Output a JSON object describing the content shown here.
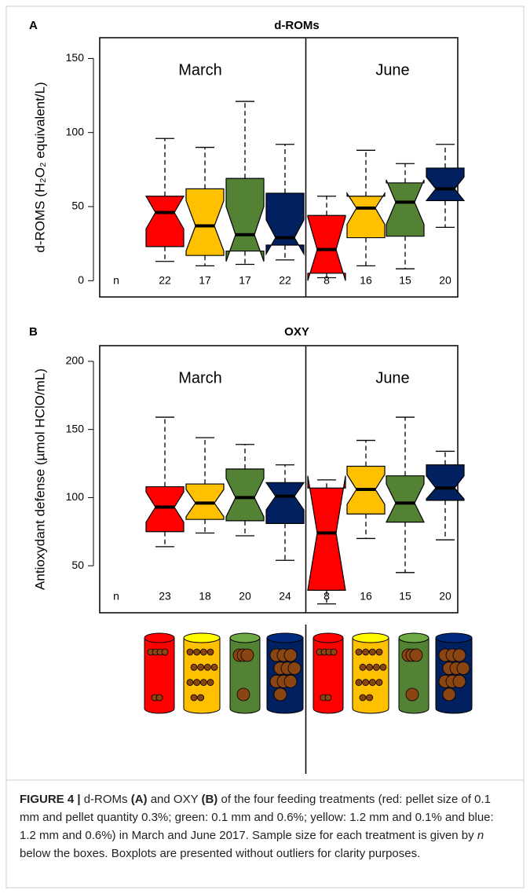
{
  "chart_data": [
    {
      "type": "boxplot",
      "label": "A",
      "title": "d-ROMs",
      "ylabel": "d-ROMS (H₂O₂ equivalent/L)",
      "groups": [
        "March",
        "June"
      ],
      "n_label": "n",
      "n": [
        22,
        17,
        17,
        22,
        8,
        16,
        15,
        20
      ],
      "colors": [
        "#ff0000",
        "#ffc000",
        "#548235",
        "#002060",
        "#ff0000",
        "#ffc000",
        "#548235",
        "#002060"
      ],
      "boxes": [
        {
          "whisker_low": 13,
          "q1": 23,
          "median": 46,
          "q3": 57,
          "whisker_high": 96,
          "notch_low": 35,
          "notch_high": 57
        },
        {
          "whisker_low": 10,
          "q1": 17,
          "median": 37,
          "q3": 62,
          "whisker_high": 90,
          "notch_low": 20,
          "notch_high": 54
        },
        {
          "whisker_low": 11,
          "q1": 20,
          "median": 31,
          "q3": 69,
          "whisker_high": 121,
          "notch_low": 13,
          "notch_high": 50
        },
        {
          "whisker_low": 14,
          "q1": 24,
          "median": 29,
          "q3": 59,
          "whisker_high": 92,
          "notch_low": 18,
          "notch_high": 41
        },
        {
          "whisker_low": 2,
          "q1": 5,
          "median": 21,
          "q3": 44,
          "whisker_high": 57,
          "notch_low": 0,
          "notch_high": 43
        },
        {
          "whisker_low": 10,
          "q1": 29,
          "median": 49,
          "q3": 57,
          "whisker_high": 88,
          "notch_low": 38,
          "notch_high": 59
        },
        {
          "whisker_low": 8,
          "q1": 30,
          "median": 53,
          "q3": 66,
          "whisker_high": 79,
          "notch_low": 38,
          "notch_high": 68
        },
        {
          "whisker_low": 36,
          "q1": 54,
          "median": 62,
          "q3": 76,
          "whisker_high": 92,
          "notch_low": 54,
          "notch_high": 70
        }
      ],
      "ylim": [
        -11,
        164
      ],
      "yticks": [
        0,
        50,
        100,
        150
      ]
    },
    {
      "type": "boxplot",
      "label": "B",
      "title": "OXY",
      "ylabel": "Antioxydant defense (µmol HClO/mL)",
      "groups": [
        "March",
        "June"
      ],
      "n_label": "n",
      "n": [
        23,
        18,
        20,
        24,
        8,
        16,
        15,
        20
      ],
      "colors": [
        "#ff0000",
        "#ffc000",
        "#548235",
        "#002060",
        "#ff0000",
        "#ffc000",
        "#548235",
        "#002060"
      ],
      "boxes": [
        {
          "whisker_low": 64,
          "q1": 75,
          "median": 93,
          "q3": 108,
          "whisker_high": 159,
          "notch_low": 82,
          "notch_high": 104
        },
        {
          "whisker_low": 74,
          "q1": 84,
          "median": 96,
          "q3": 110,
          "whisker_high": 144,
          "notch_low": 86,
          "notch_high": 106
        },
        {
          "whisker_low": 72,
          "q1": 83,
          "median": 100,
          "q3": 121,
          "whisker_high": 139,
          "notch_low": 86,
          "notch_high": 114
        },
        {
          "whisker_low": 54,
          "q1": 81,
          "median": 101,
          "q3": 111,
          "whisker_high": 124,
          "notch_low": 91,
          "notch_high": 111
        },
        {
          "whisker_low": 22,
          "q1": 32,
          "median": 74,
          "q3": 107,
          "whisker_high": 113,
          "notch_low": 32,
          "notch_high": 116
        },
        {
          "whisker_low": 70,
          "q1": 88,
          "median": 106,
          "q3": 123,
          "whisker_high": 142,
          "notch_low": 95,
          "notch_high": 117
        },
        {
          "whisker_low": 45,
          "q1": 82,
          "median": 96,
          "q3": 116,
          "whisker_high": 159,
          "notch_low": 82,
          "notch_high": 110
        },
        {
          "whisker_low": 69,
          "q1": 98,
          "median": 107,
          "q3": 124,
          "whisker_high": 134,
          "notch_low": 99,
          "notch_high": 116
        }
      ],
      "ylim": [
        15.5,
        211.5
      ],
      "yticks": [
        50,
        100,
        150,
        200
      ]
    }
  ],
  "caption": [
    {
      "text": "FIGURE 4 |",
      "bold": true
    },
    {
      "text": " d-ROMs "
    },
    {
      "text": "(A)",
      "bold": true
    },
    {
      "text": " and OXY "
    },
    {
      "text": "(B)",
      "bold": true
    },
    {
      "text": " of the four feeding treatments (red: pellet size of 0.1 mm and pellet quantity 0.3%; green: 0.1 mm and 0.6%; yellow: 1.2 mm and 0.1% and blue: 1.2 mm and 0.6%) in March and June 2017. Sample size for each treatment is given by "
    },
    {
      "text": "n",
      "italic": true
    },
    {
      "text": " below the boxes. Boxplots are presented without outliers for clarity purposes."
    }
  ]
}
